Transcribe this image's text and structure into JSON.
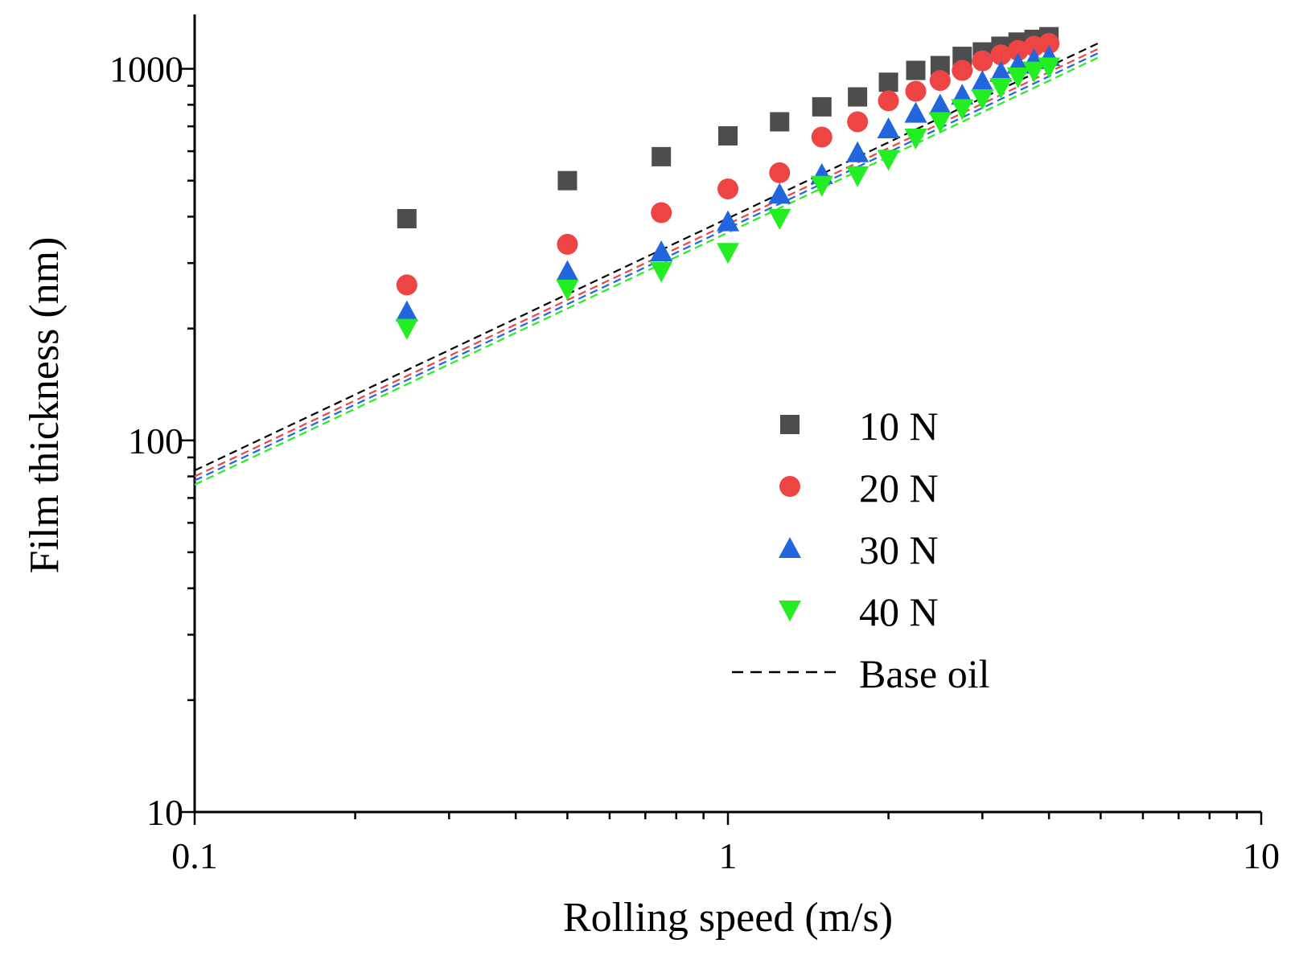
{
  "chart_data": {
    "type": "scatter",
    "title": "",
    "xlabel": "Rolling speed (m/s)",
    "ylabel": "Film thickness (nm)",
    "xscale": "log",
    "yscale": "log",
    "xlim": [
      0.1,
      10
    ],
    "ylim": [
      10,
      1400
    ],
    "x_ticks": [
      {
        "value": 0.1,
        "label": "0.1"
      },
      {
        "value": 1,
        "label": "1"
      },
      {
        "value": 10,
        "label": "10"
      }
    ],
    "y_ticks": [
      {
        "value": 10,
        "label": "10"
      },
      {
        "value": 100,
        "label": "100"
      },
      {
        "value": 1000,
        "label": "1000"
      }
    ],
    "legend_position": "center-right",
    "series": [
      {
        "name": "10 N",
        "label": "10 N",
        "marker": "square",
        "color": "#4d4d4d",
        "x": [
          0.25,
          0.5,
          0.75,
          1.0,
          1.25,
          1.5,
          1.75,
          2.0,
          2.25,
          2.5,
          2.75,
          3.0,
          3.25,
          3.5,
          3.75,
          4.0
        ],
        "y": [
          395,
          500,
          580,
          660,
          720,
          790,
          840,
          920,
          990,
          1020,
          1080,
          1110,
          1150,
          1180,
          1200,
          1220
        ]
      },
      {
        "name": "20 N",
        "label": "20 N",
        "marker": "circle",
        "color": "#ee4444",
        "x": [
          0.25,
          0.5,
          0.75,
          1.0,
          1.25,
          1.5,
          1.75,
          2.0,
          2.25,
          2.5,
          2.75,
          3.0,
          3.25,
          3.5,
          3.75,
          4.0
        ],
        "y": [
          262,
          337,
          410,
          475,
          525,
          655,
          720,
          820,
          870,
          930,
          990,
          1050,
          1090,
          1120,
          1150,
          1170
        ]
      },
      {
        "name": "30 N",
        "label": "30 N",
        "marker": "triangle-up",
        "color": "#2266dd",
        "x": [
          0.25,
          0.5,
          0.75,
          1.0,
          1.25,
          1.5,
          1.75,
          2.0,
          2.25,
          2.5,
          2.75,
          3.0,
          3.25,
          3.5,
          3.75,
          4.0
        ],
        "y": [
          222,
          285,
          322,
          388,
          460,
          520,
          595,
          690,
          760,
          800,
          850,
          925,
          980,
          1030,
          1060,
          1080
        ]
      },
      {
        "name": "40 N",
        "label": "40 N",
        "marker": "triangle-down",
        "color": "#22ee22",
        "x": [
          0.25,
          0.5,
          0.75,
          1.0,
          1.25,
          1.5,
          1.75,
          2.0,
          2.25,
          2.5,
          2.75,
          3.0,
          3.25,
          3.5,
          3.75,
          4.0
        ],
        "y": [
          200,
          255,
          285,
          320,
          395,
          485,
          515,
          570,
          650,
          720,
          780,
          830,
          890,
          950,
          985,
          1010
        ]
      }
    ],
    "base_oil": {
      "name": "Base oil",
      "label": "Base oil",
      "style": "dashed",
      "lines": [
        {
          "color": "#000000",
          "x": [
            0.1,
            5.0
          ],
          "y": [
            83,
            1180
          ]
        },
        {
          "color": "#ee4444",
          "x": [
            0.1,
            5.0
          ],
          "y": [
            80,
            1140
          ]
        },
        {
          "color": "#2266dd",
          "x": [
            0.1,
            5.0
          ],
          "y": [
            78,
            1110
          ]
        },
        {
          "color": "#22ee22",
          "x": [
            0.1,
            5.0
          ],
          "y": [
            76,
            1080
          ]
        }
      ]
    }
  }
}
